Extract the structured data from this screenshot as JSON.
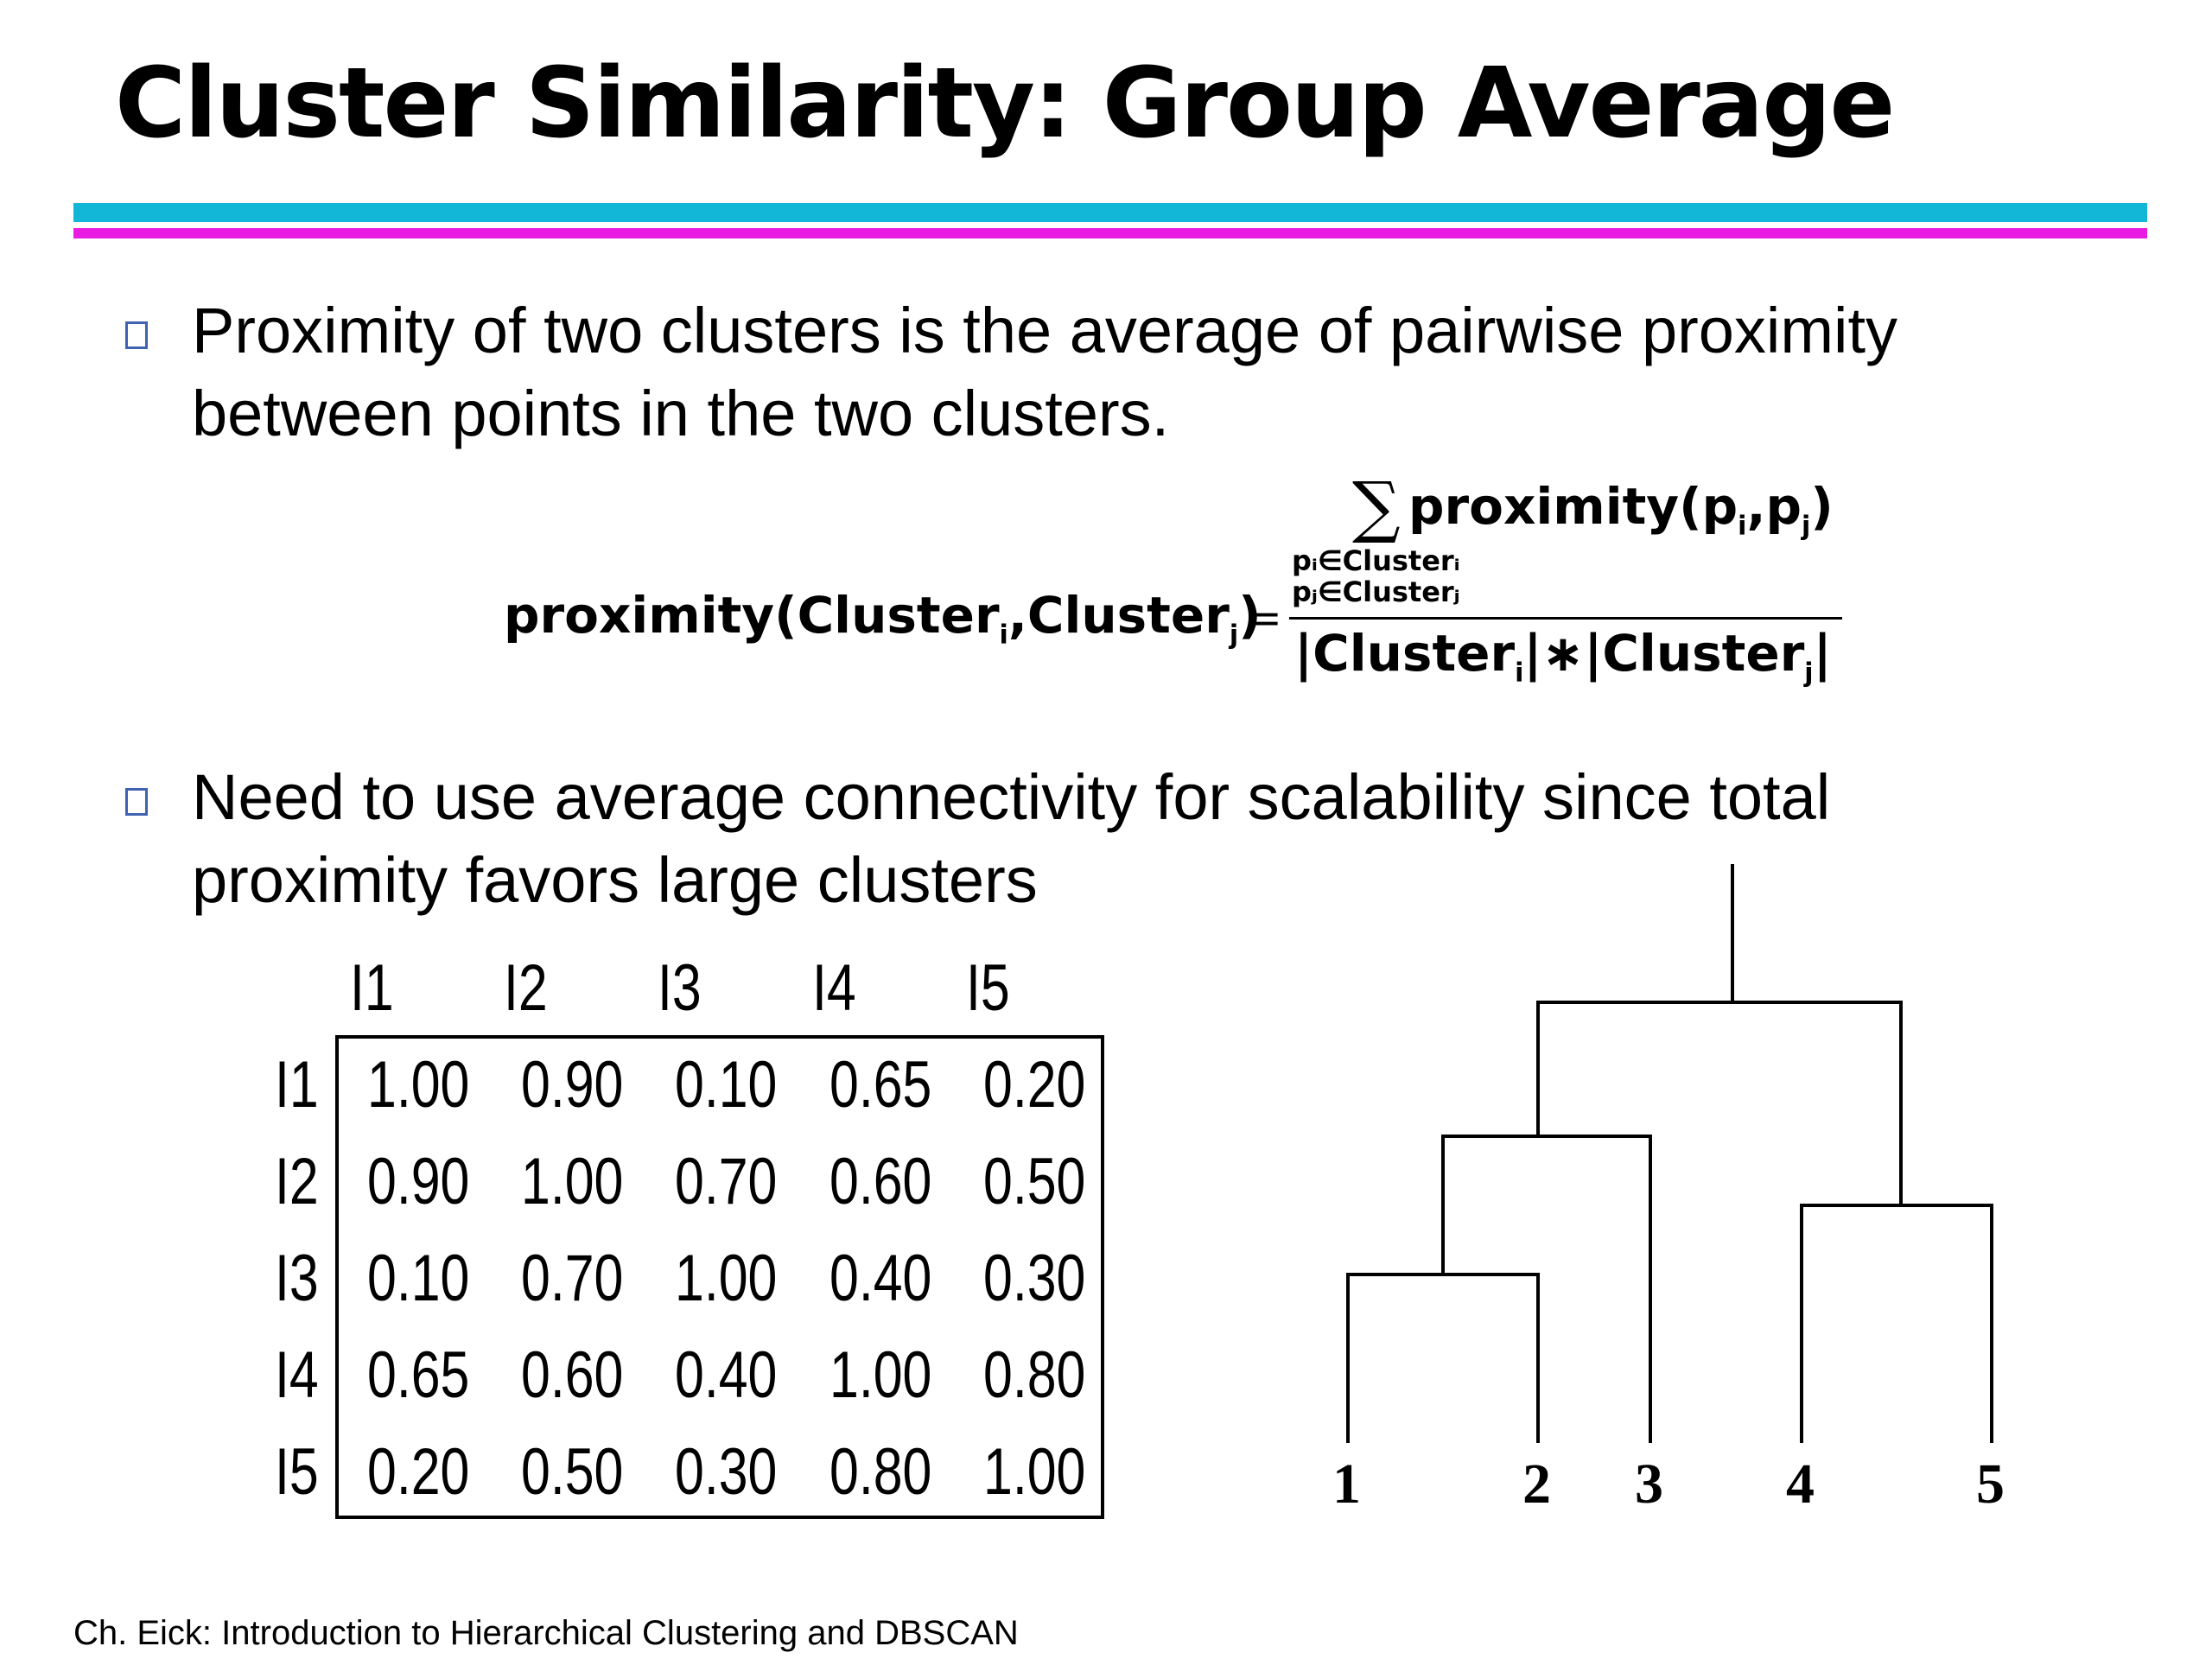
{
  "title": "Cluster Similarity: Group Average",
  "bullets": [
    {
      "lines": [
        "Proximity of two clusters is the average of pairwise proximity",
        "between points in the two clusters."
      ]
    },
    {
      "lines": [
        "Need to use average connectivity for scalability since total",
        "proximity favors large clusters"
      ]
    }
  ],
  "formula": {
    "lhs_prefix": "proximity(Cluster",
    "lhs_i": "i",
    "lhs_mid": ",Cluster",
    "lhs_j": "j",
    "lhs_suffix": ")",
    "equals": "=",
    "sigma": "∑",
    "num_prefix": "proximity(p",
    "num_i": "i",
    "num_mid": ",p",
    "num_j": "j",
    "num_suffix": ")",
    "sum_index_1": "pᵢ∈Clusterᵢ",
    "sum_index_2": "pⱼ∈Clusterⱼ",
    "den_prefix": "|Cluster",
    "den_i": "i",
    "den_mid": "|∗|Cluster",
    "den_j": "j",
    "den_suffix": "|"
  },
  "matrix": {
    "columns": [
      "I1",
      "I2",
      "I3",
      "I4",
      "I5"
    ],
    "rows": [
      "I1",
      "I2",
      "I3",
      "I4",
      "I5"
    ],
    "values": [
      [
        "1.00",
        "0.90",
        "0.10",
        "0.65",
        "0.20"
      ],
      [
        "0.90",
        "1.00",
        "0.70",
        "0.60",
        "0.50"
      ],
      [
        "0.10",
        "0.70",
        "1.00",
        "0.40",
        "0.30"
      ],
      [
        "0.65",
        "0.60",
        "0.40",
        "1.00",
        "0.80"
      ],
      [
        "0.20",
        "0.50",
        "0.30",
        "0.80",
        "1.00"
      ]
    ]
  },
  "dendrogram": {
    "leaves": [
      "1",
      "2",
      "3",
      "4",
      "5"
    ]
  },
  "footer": "Ch. Eick: Introduction to Hierarchical Clustering and DBSCAN"
}
